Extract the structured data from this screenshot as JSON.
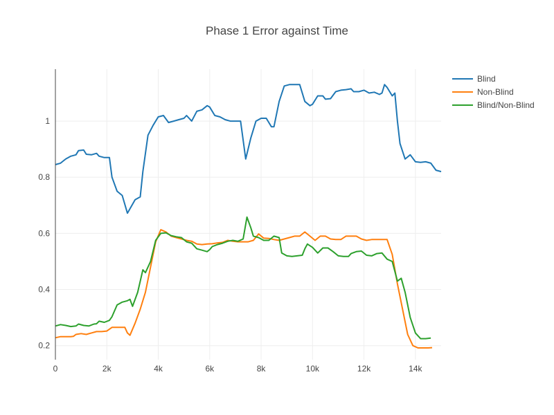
{
  "chart_data": {
    "type": "line",
    "title": "Phase 1 Error against Time",
    "xlabel": "",
    "ylabel": "",
    "xlim": [
      0,
      15000
    ],
    "ylim": [
      0.15,
      1.185
    ],
    "x_ticks": [
      0,
      2000,
      4000,
      6000,
      8000,
      10000,
      12000,
      14000
    ],
    "x_tick_labels": [
      "0",
      "2k",
      "4k",
      "6k",
      "8k",
      "10k",
      "12k",
      "14k"
    ],
    "y_ticks": [
      0.2,
      0.4,
      0.6,
      0.8,
      1.0
    ],
    "y_tick_labels": [
      "0.2",
      "0.4",
      "0.6",
      "0.8",
      "1"
    ],
    "grid": true,
    "legend_position": "top-right",
    "series": [
      {
        "name": "Blind",
        "color": "#1f77b4",
        "points": [
          [
            0,
            0.845
          ],
          [
            200,
            0.85
          ],
          [
            400,
            0.865
          ],
          [
            600,
            0.875
          ],
          [
            800,
            0.88
          ],
          [
            900,
            0.895
          ],
          [
            1100,
            0.897
          ],
          [
            1200,
            0.882
          ],
          [
            1400,
            0.88
          ],
          [
            1600,
            0.885
          ],
          [
            1700,
            0.875
          ],
          [
            1900,
            0.87
          ],
          [
            2100,
            0.87
          ],
          [
            2200,
            0.8
          ],
          [
            2400,
            0.75
          ],
          [
            2600,
            0.735
          ],
          [
            2800,
            0.672
          ],
          [
            3100,
            0.72
          ],
          [
            3300,
            0.73
          ],
          [
            3400,
            0.82
          ],
          [
            3600,
            0.95
          ],
          [
            3800,
            0.985
          ],
          [
            4000,
            1.015
          ],
          [
            4200,
            1.02
          ],
          [
            4400,
            0.995
          ],
          [
            4600,
            1.0
          ],
          [
            4800,
            1.005
          ],
          [
            5000,
            1.01
          ],
          [
            5100,
            1.02
          ],
          [
            5300,
            1.0
          ],
          [
            5500,
            1.035
          ],
          [
            5700,
            1.04
          ],
          [
            5900,
            1.055
          ],
          [
            6000,
            1.05
          ],
          [
            6200,
            1.02
          ],
          [
            6400,
            1.015
          ],
          [
            6600,
            1.005
          ],
          [
            6800,
            1.0
          ],
          [
            7000,
            1.0
          ],
          [
            7100,
            1.0
          ],
          [
            7200,
            1.0
          ],
          [
            7400,
            0.865
          ],
          [
            7600,
            0.94
          ],
          [
            7800,
            1.0
          ],
          [
            8000,
            1.01
          ],
          [
            8200,
            1.01
          ],
          [
            8400,
            0.98
          ],
          [
            8500,
            0.98
          ],
          [
            8700,
            1.07
          ],
          [
            8900,
            1.125
          ],
          [
            9100,
            1.13
          ],
          [
            9300,
            1.13
          ],
          [
            9500,
            1.13
          ],
          [
            9700,
            1.07
          ],
          [
            9900,
            1.055
          ],
          [
            10000,
            1.06
          ],
          [
            10200,
            1.09
          ],
          [
            10400,
            1.09
          ],
          [
            10500,
            1.078
          ],
          [
            10700,
            1.08
          ],
          [
            10900,
            1.105
          ],
          [
            11100,
            1.11
          ],
          [
            11300,
            1.112
          ],
          [
            11500,
            1.115
          ],
          [
            11600,
            1.105
          ],
          [
            11800,
            1.105
          ],
          [
            12000,
            1.11
          ],
          [
            12200,
            1.1
          ],
          [
            12400,
            1.103
          ],
          [
            12600,
            1.095
          ],
          [
            12700,
            1.1
          ],
          [
            12800,
            1.13
          ],
          [
            12900,
            1.12
          ],
          [
            13100,
            1.09
          ],
          [
            13200,
            1.1
          ],
          [
            13300,
            1.0
          ],
          [
            13400,
            0.92
          ],
          [
            13600,
            0.865
          ],
          [
            13800,
            0.88
          ],
          [
            14000,
            0.855
          ],
          [
            14200,
            0.853
          ],
          [
            14400,
            0.855
          ],
          [
            14600,
            0.85
          ],
          [
            14800,
            0.825
          ],
          [
            15000,
            0.82
          ]
        ]
      },
      {
        "name": "Non-Blind",
        "color": "#ff7f0e",
        "points": [
          [
            0,
            0.228
          ],
          [
            200,
            0.232
          ],
          [
            400,
            0.232
          ],
          [
            600,
            0.232
          ],
          [
            700,
            0.233
          ],
          [
            800,
            0.24
          ],
          [
            1000,
            0.243
          ],
          [
            1200,
            0.24
          ],
          [
            1400,
            0.245
          ],
          [
            1600,
            0.25
          ],
          [
            1800,
            0.25
          ],
          [
            2000,
            0.252
          ],
          [
            2200,
            0.265
          ],
          [
            2400,
            0.265
          ],
          [
            2700,
            0.265
          ],
          [
            2800,
            0.245
          ],
          [
            2900,
            0.237
          ],
          [
            3100,
            0.28
          ],
          [
            3300,
            0.33
          ],
          [
            3500,
            0.39
          ],
          [
            3700,
            0.48
          ],
          [
            3900,
            0.57
          ],
          [
            4100,
            0.613
          ],
          [
            4300,
            0.605
          ],
          [
            4500,
            0.59
          ],
          [
            4700,
            0.585
          ],
          [
            4900,
            0.58
          ],
          [
            5100,
            0.575
          ],
          [
            5300,
            0.572
          ],
          [
            5500,
            0.562
          ],
          [
            5700,
            0.56
          ],
          [
            5900,
            0.562
          ],
          [
            6100,
            0.563
          ],
          [
            6300,
            0.566
          ],
          [
            6500,
            0.568
          ],
          [
            6700,
            0.575
          ],
          [
            6900,
            0.572
          ],
          [
            7100,
            0.57
          ],
          [
            7300,
            0.57
          ],
          [
            7500,
            0.57
          ],
          [
            7700,
            0.575
          ],
          [
            7900,
            0.598
          ],
          [
            8100,
            0.583
          ],
          [
            8300,
            0.582
          ],
          [
            8500,
            0.578
          ],
          [
            8700,
            0.575
          ],
          [
            8900,
            0.58
          ],
          [
            9100,
            0.585
          ],
          [
            9300,
            0.59
          ],
          [
            9500,
            0.59
          ],
          [
            9700,
            0.605
          ],
          [
            9900,
            0.59
          ],
          [
            10100,
            0.575
          ],
          [
            10300,
            0.59
          ],
          [
            10500,
            0.59
          ],
          [
            10700,
            0.58
          ],
          [
            10900,
            0.578
          ],
          [
            11100,
            0.578
          ],
          [
            11300,
            0.59
          ],
          [
            11500,
            0.59
          ],
          [
            11700,
            0.59
          ],
          [
            11900,
            0.58
          ],
          [
            12100,
            0.575
          ],
          [
            12300,
            0.578
          ],
          [
            12500,
            0.578
          ],
          [
            12700,
            0.578
          ],
          [
            12900,
            0.578
          ],
          [
            13100,
            0.525
          ],
          [
            13300,
            0.42
          ],
          [
            13500,
            0.33
          ],
          [
            13700,
            0.24
          ],
          [
            13900,
            0.2
          ],
          [
            14100,
            0.192
          ],
          [
            14300,
            0.192
          ],
          [
            14500,
            0.192
          ],
          [
            14650,
            0.193
          ]
        ]
      },
      {
        "name": "Blind/Non-Blind",
        "color": "#2ca02c",
        "points": [
          [
            0,
            0.27
          ],
          [
            200,
            0.275
          ],
          [
            400,
            0.272
          ],
          [
            600,
            0.268
          ],
          [
            800,
            0.27
          ],
          [
            900,
            0.277
          ],
          [
            1100,
            0.272
          ],
          [
            1300,
            0.27
          ],
          [
            1500,
            0.277
          ],
          [
            1600,
            0.278
          ],
          [
            1700,
            0.287
          ],
          [
            1900,
            0.283
          ],
          [
            2100,
            0.29
          ],
          [
            2200,
            0.303
          ],
          [
            2400,
            0.345
          ],
          [
            2600,
            0.355
          ],
          [
            2800,
            0.36
          ],
          [
            2900,
            0.365
          ],
          [
            3000,
            0.34
          ],
          [
            3200,
            0.39
          ],
          [
            3400,
            0.47
          ],
          [
            3500,
            0.46
          ],
          [
            3700,
            0.5
          ],
          [
            3900,
            0.575
          ],
          [
            4100,
            0.6
          ],
          [
            4300,
            0.602
          ],
          [
            4500,
            0.592
          ],
          [
            4700,
            0.588
          ],
          [
            4900,
            0.585
          ],
          [
            5100,
            0.57
          ],
          [
            5300,
            0.565
          ],
          [
            5500,
            0.545
          ],
          [
            5700,
            0.54
          ],
          [
            5900,
            0.535
          ],
          [
            6000,
            0.542
          ],
          [
            6100,
            0.553
          ],
          [
            6300,
            0.56
          ],
          [
            6500,
            0.565
          ],
          [
            6700,
            0.572
          ],
          [
            6900,
            0.575
          ],
          [
            7100,
            0.572
          ],
          [
            7300,
            0.58
          ],
          [
            7450,
            0.658
          ],
          [
            7600,
            0.62
          ],
          [
            7700,
            0.59
          ],
          [
            7900,
            0.585
          ],
          [
            8100,
            0.575
          ],
          [
            8300,
            0.575
          ],
          [
            8500,
            0.59
          ],
          [
            8700,
            0.585
          ],
          [
            8800,
            0.53
          ],
          [
            9000,
            0.52
          ],
          [
            9200,
            0.518
          ],
          [
            9400,
            0.52
          ],
          [
            9600,
            0.522
          ],
          [
            9700,
            0.545
          ],
          [
            9800,
            0.562
          ],
          [
            10000,
            0.55
          ],
          [
            10200,
            0.53
          ],
          [
            10400,
            0.548
          ],
          [
            10600,
            0.548
          ],
          [
            10800,
            0.535
          ],
          [
            11000,
            0.52
          ],
          [
            11200,
            0.518
          ],
          [
            11400,
            0.518
          ],
          [
            11500,
            0.528
          ],
          [
            11700,
            0.535
          ],
          [
            11900,
            0.537
          ],
          [
            12100,
            0.522
          ],
          [
            12300,
            0.52
          ],
          [
            12500,
            0.528
          ],
          [
            12700,
            0.53
          ],
          [
            12900,
            0.508
          ],
          [
            13100,
            0.5
          ],
          [
            13300,
            0.43
          ],
          [
            13450,
            0.44
          ],
          [
            13600,
            0.39
          ],
          [
            13800,
            0.3
          ],
          [
            14000,
            0.245
          ],
          [
            14200,
            0.225
          ],
          [
            14400,
            0.225
          ],
          [
            14600,
            0.227
          ]
        ]
      }
    ]
  }
}
